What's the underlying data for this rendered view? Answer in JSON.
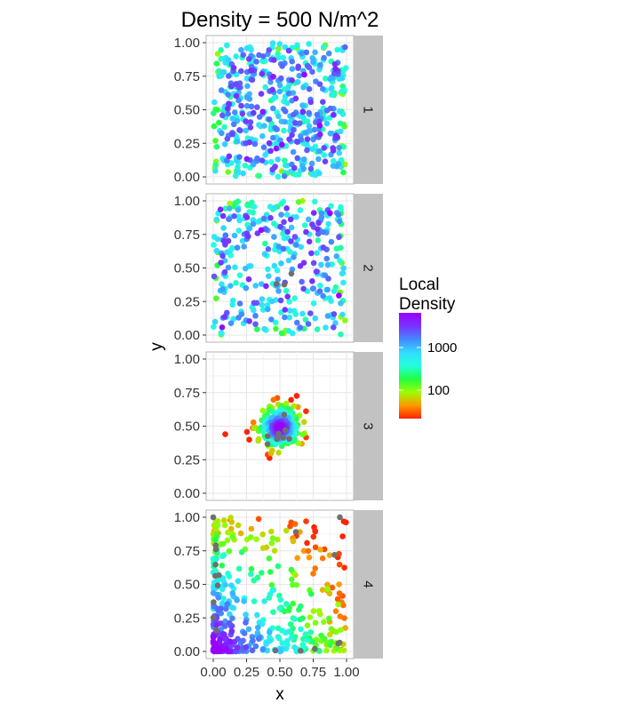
{
  "title": "Density = 500 N/m^2",
  "chart_data": {
    "type": "scatter",
    "title": "Density = 500 N/m^2",
    "xlabel": "x",
    "ylabel": "y",
    "xlim": [
      0,
      1
    ],
    "ylim": [
      0,
      1
    ],
    "x_ticks": [
      "0.00",
      "0.25",
      "0.50",
      "0.75",
      "1.00"
    ],
    "y_ticks": [
      "0.00",
      "0.25",
      "0.50",
      "0.75",
      "1.00"
    ],
    "grid": true,
    "facet_labels": [
      "1",
      "2",
      "3",
      "4"
    ],
    "legend": {
      "title_lines": [
        "Local",
        "Density"
      ],
      "ticks": [
        "1000",
        "100"
      ],
      "placement": "right",
      "colorscale": [
        "#ff2200",
        "#ff9900",
        "#99ff00",
        "#22ff44",
        "#22ffdd",
        "#33ddff",
        "#4488ff",
        "#7733ff",
        "#9900ff"
      ]
    },
    "na_color": "#6f6f6f",
    "panels": [
      {
        "label": "1",
        "distribution": "uniform",
        "points": 520,
        "density_range": [
          30,
          2000
        ],
        "na_points": 0
      },
      {
        "label": "2",
        "distribution": "uniform",
        "points": 330,
        "density_range": [
          30,
          2500
        ],
        "na_points": 3
      },
      {
        "label": "3",
        "distribution": "cluster",
        "center": [
          0.5,
          0.49
        ],
        "points": 480,
        "density_range": [
          10,
          3000
        ],
        "na_points": 8
      },
      {
        "label": "4",
        "distribution": "corner-skewed",
        "points": 420,
        "density_range": [
          10,
          2500
        ],
        "na_points": 14
      }
    ]
  }
}
